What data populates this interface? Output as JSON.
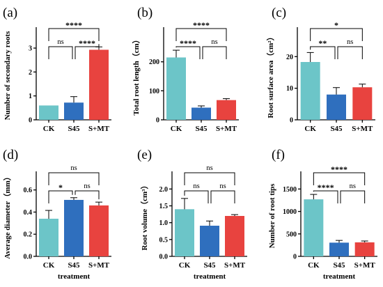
{
  "colors": {
    "CK": "#6cc5c8",
    "S45": "#2f6fbe",
    "S+MT": "#e8433f"
  },
  "chart_data": [
    {
      "id": "a",
      "type": "bar",
      "panel_label": "(a)",
      "ylabel": "Number of secondary roots",
      "xlabel": "",
      "categories": [
        "CK",
        "S45",
        "S+MT"
      ],
      "values": [
        0.6,
        0.72,
        2.93
      ],
      "errors": [
        0.0,
        0.25,
        0.12
      ],
      "ylim": [
        0,
        3.7
      ],
      "yticks": [
        "0",
        "1",
        "2",
        "3"
      ],
      "brackets": [
        {
          "from": 0,
          "to": 1,
          "label": "ns",
          "level": 1
        },
        {
          "from": 1,
          "to": 2,
          "label": "****",
          "level": 1
        },
        {
          "from": 0,
          "to": 2,
          "label": "****",
          "level": 2
        }
      ]
    },
    {
      "id": "b",
      "type": "bar",
      "panel_label": "(b)",
      "ylabel": "Total root length（cm）",
      "xlabel": "",
      "categories": [
        "CK",
        "S45",
        "S+MT"
      ],
      "values": [
        215,
        42,
        68
      ],
      "errors": [
        25,
        6,
        5
      ],
      "ylim": [
        0,
        305
      ],
      "yticks": [
        "0",
        "100",
        "200"
      ],
      "brackets": [
        {
          "from": 0,
          "to": 1,
          "label": "****",
          "level": 1
        },
        {
          "from": 1,
          "to": 2,
          "label": "ns",
          "level": 1
        },
        {
          "from": 0,
          "to": 2,
          "label": "****",
          "level": 2
        }
      ]
    },
    {
      "id": "c",
      "type": "bar",
      "panel_label": "(c)",
      "ylabel": "Root surface area（cm²）",
      "xlabel": "",
      "categories": [
        "CK",
        "S45",
        "S+MT"
      ],
      "values": [
        18.3,
        8.0,
        10.3
      ],
      "errors": [
        3.0,
        2.2,
        1.0
      ],
      "ylim": [
        0,
        28
      ],
      "yticks": [
        "0",
        "10",
        "20"
      ],
      "brackets": [
        {
          "from": 0,
          "to": 1,
          "label": "**",
          "level": 1
        },
        {
          "from": 1,
          "to": 2,
          "label": "ns",
          "level": 1
        },
        {
          "from": 0,
          "to": 2,
          "label": "*",
          "level": 2
        }
      ]
    },
    {
      "id": "d",
      "type": "bar",
      "panel_label": "(d)",
      "ylabel": "Average diameter（mm）",
      "xlabel": "treatment",
      "categories": [
        "CK",
        "S45",
        "S+MT"
      ],
      "values": [
        0.34,
        0.51,
        0.46
      ],
      "errors": [
        0.075,
        0.02,
        0.03
      ],
      "ylim": [
        0,
        0.73
      ],
      "yticks": [
        "0.0",
        "0.2",
        "0.4",
        "0.6"
      ],
      "brackets": [
        {
          "from": 0,
          "to": 1,
          "label": "*",
          "level": 1
        },
        {
          "from": 1,
          "to": 2,
          "label": "ns",
          "level": 1
        },
        {
          "from": 0,
          "to": 2,
          "label": "ns",
          "level": 2
        }
      ]
    },
    {
      "id": "e",
      "type": "bar",
      "panel_label": "(e)",
      "ylabel": "Root volume（cm³）",
      "xlabel": "treatment",
      "categories": [
        "CK",
        "S45",
        "S+MT"
      ],
      "values": [
        1.4,
        0.91,
        1.2
      ],
      "errors": [
        0.32,
        0.14,
        0.04
      ],
      "ylim": [
        0,
        2.4
      ],
      "yticks": [
        "0.0",
        "0.5",
        "1.0",
        "1.5",
        "2.0"
      ],
      "brackets": [
        {
          "from": 0,
          "to": 1,
          "label": "ns",
          "level": 1
        },
        {
          "from": 1,
          "to": 2,
          "label": "ns",
          "level": 1
        },
        {
          "from": 0,
          "to": 2,
          "label": "ns",
          "level": 2
        }
      ]
    },
    {
      "id": "f",
      "type": "bar",
      "panel_label": "(f)",
      "ylabel": "Number of root tips",
      "xlabel": "treatment",
      "categories": [
        "CK",
        "S45",
        "S+MT"
      ],
      "values": [
        1270,
        305,
        312
      ],
      "errors": [
        110,
        50,
        30
      ],
      "ylim": [
        0,
        1800
      ],
      "yticks": [
        "0",
        "500",
        "1000",
        "1500"
      ],
      "brackets": [
        {
          "from": 0,
          "to": 1,
          "label": "****",
          "level": 1
        },
        {
          "from": 1,
          "to": 2,
          "label": "ns",
          "level": 1
        },
        {
          "from": 0,
          "to": 2,
          "label": "****",
          "level": 2
        }
      ]
    }
  ]
}
